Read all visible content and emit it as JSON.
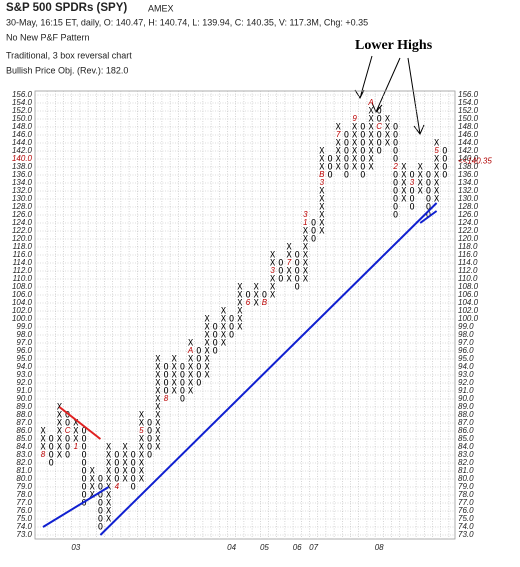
{
  "chart_data": {
    "type": "point_and_figure",
    "title": "S&P 500 SPDRs (SPY)",
    "exchange": "AMEX",
    "info": "30-May, 16:15 ET, daily, O: 140.47, H: 140.74, L: 139.94, C: 140.35, V: 117.3M, Chg: +0.35",
    "pattern": "No New P&F Pattern",
    "method": "Traditional, 3 box reversal chart",
    "objective": "Bullish Price Obj. (Rev.): 182.0",
    "annotation": "Lower Highs",
    "grid": true,
    "highlight_tick": 140,
    "highlight_color": "#b00000",
    "last_price": {
      "value": 140.35,
      "label": "<<140.35"
    },
    "ylim": [
      73,
      156
    ],
    "yticks": [
      {
        "value": 156,
        "label": "156.0"
      },
      {
        "value": 154,
        "label": "154.0"
      },
      {
        "value": 152,
        "label": "152.0"
      },
      {
        "value": 150,
        "label": "150.0"
      },
      {
        "value": 148,
        "label": "148.0"
      },
      {
        "value": 146,
        "label": "146.0"
      },
      {
        "value": 144,
        "label": "144.0"
      },
      {
        "value": 142,
        "label": "142.0"
      },
      {
        "value": 140,
        "label": "140.0"
      },
      {
        "value": 138,
        "label": "138.0"
      },
      {
        "value": 136,
        "label": "136.0"
      },
      {
        "value": 134,
        "label": "134.0"
      },
      {
        "value": 132,
        "label": "132.0"
      },
      {
        "value": 130,
        "label": "130.0"
      },
      {
        "value": 128,
        "label": "128.0"
      },
      {
        "value": 126,
        "label": "126.0"
      },
      {
        "value": 124,
        "label": "124.0"
      },
      {
        "value": 122,
        "label": "122.0"
      },
      {
        "value": 120,
        "label": "120.0"
      },
      {
        "value": 118,
        "label": "118.0"
      },
      {
        "value": 116,
        "label": "116.0"
      },
      {
        "value": 114,
        "label": "114.0"
      },
      {
        "value": 112,
        "label": "112.0"
      },
      {
        "value": 110,
        "label": "110.0"
      },
      {
        "value": 108,
        "label": "108.0"
      },
      {
        "value": 106,
        "label": "106.0"
      },
      {
        "value": 104,
        "label": "104.0"
      },
      {
        "value": 102,
        "label": "102.0"
      },
      {
        "value": 100,
        "label": "100.0"
      },
      {
        "value": 99,
        "label": "99.0"
      },
      {
        "value": 98,
        "label": "98.0"
      },
      {
        "value": 97,
        "label": "97.0"
      },
      {
        "value": 96,
        "label": "96.0"
      },
      {
        "value": 95,
        "label": "95.0"
      },
      {
        "value": 94,
        "label": "94.0"
      },
      {
        "value": 93,
        "label": "93.0"
      },
      {
        "value": 92,
        "label": "92.0"
      },
      {
        "value": 91,
        "label": "91.0"
      },
      {
        "value": 90,
        "label": "90.0"
      },
      {
        "value": 89,
        "label": "89.0"
      },
      {
        "value": 88,
        "label": "88.0"
      },
      {
        "value": 87,
        "label": "87.0"
      },
      {
        "value": 86,
        "label": "86.0"
      },
      {
        "value": 85,
        "label": "85.0"
      },
      {
        "value": 84,
        "label": "84.0"
      },
      {
        "value": 83,
        "label": "83.0"
      },
      {
        "value": 82,
        "label": "82.0"
      },
      {
        "value": 81,
        "label": "81.0"
      },
      {
        "value": 80,
        "label": "80.0"
      },
      {
        "value": 79,
        "label": "79.0"
      },
      {
        "value": 78,
        "label": "78.0"
      },
      {
        "value": 77,
        "label": "77.0"
      },
      {
        "value": 76,
        "label": "76.0"
      },
      {
        "value": 75,
        "label": "75.0"
      },
      {
        "value": 74,
        "label": "74.0"
      },
      {
        "value": 73,
        "label": "73.0"
      }
    ],
    "columns": [
      {
        "type": "X",
        "low": 83,
        "high": 86
      },
      {
        "type": "O",
        "low": 82,
        "high": 85
      },
      {
        "type": "X",
        "low": 83,
        "high": 89
      },
      {
        "type": "O",
        "low": 83,
        "high": 88
      },
      {
        "type": "X",
        "low": 84,
        "high": 87
      },
      {
        "type": "O",
        "low": 77,
        "high": 86
      },
      {
        "type": "X",
        "low": 78,
        "high": 81
      },
      {
        "type": "O",
        "low": 74,
        "high": 80
      },
      {
        "type": "X",
        "low": 75,
        "high": 84
      },
      {
        "type": "O",
        "low": 79,
        "high": 83
      },
      {
        "type": "X",
        "low": 80,
        "high": 84
      },
      {
        "type": "O",
        "low": 79,
        "high": 83
      },
      {
        "type": "X",
        "low": 80,
        "high": 88
      },
      {
        "type": "O",
        "low": 83,
        "high": 87
      },
      {
        "type": "X",
        "low": 84,
        "high": 95
      },
      {
        "type": "O",
        "low": 90,
        "high": 94
      },
      {
        "type": "X",
        "low": 91,
        "high": 95
      },
      {
        "type": "O",
        "low": 90,
        "high": 94
      },
      {
        "type": "X",
        "low": 91,
        "high": 97
      },
      {
        "type": "O",
        "low": 92,
        "high": 96
      },
      {
        "type": "X",
        "low": 93,
        "high": 100
      },
      {
        "type": "O",
        "low": 96,
        "high": 99
      },
      {
        "type": "X",
        "low": 97,
        "high": 102
      },
      {
        "type": "O",
        "low": 98,
        "high": 100
      },
      {
        "type": "X",
        "low": 99,
        "high": 108
      },
      {
        "type": "O",
        "low": 104,
        "high": 106
      },
      {
        "type": "X",
        "low": 104,
        "high": 108
      },
      {
        "type": "O",
        "low": 104,
        "high": 106
      },
      {
        "type": "X",
        "low": 106,
        "high": 116
      },
      {
        "type": "O",
        "low": 110,
        "high": 114
      },
      {
        "type": "X",
        "low": 110,
        "high": 118
      },
      {
        "type": "O",
        "low": 108,
        "high": 116
      },
      {
        "type": "X",
        "low": 110,
        "high": 126
      },
      {
        "type": "O",
        "low": 120,
        "high": 124
      },
      {
        "type": "X",
        "low": 122,
        "high": 142
      },
      {
        "type": "O",
        "low": 136,
        "high": 140
      },
      {
        "type": "X",
        "low": 138,
        "high": 148
      },
      {
        "type": "O",
        "low": 136,
        "high": 146
      },
      {
        "type": "X",
        "low": 138,
        "high": 150
      },
      {
        "type": "O",
        "low": 136,
        "high": 148
      },
      {
        "type": "X",
        "low": 138,
        "high": 154
      },
      {
        "type": "O",
        "low": 142,
        "high": 152
      },
      {
        "type": "X",
        "low": 144,
        "high": 150
      },
      {
        "type": "O",
        "low": 126,
        "high": 148
      },
      {
        "type": "X",
        "low": 130,
        "high": 138
      },
      {
        "type": "O",
        "low": 128,
        "high": 136
      },
      {
        "type": "X",
        "low": 132,
        "high": 138
      },
      {
        "type": "O",
        "low": 126,
        "high": 136
      },
      {
        "type": "X",
        "low": 130,
        "high": 144
      },
      {
        "type": "O",
        "low": 136,
        "high": 142
      }
    ],
    "markers": [
      {
        "column": 0,
        "value": 83,
        "label": "8"
      },
      {
        "column": 3,
        "value": 86,
        "label": "C"
      },
      {
        "column": 4,
        "value": 84,
        "label": "1"
      },
      {
        "column": 9,
        "value": 79,
        "label": "4"
      },
      {
        "column": 12,
        "value": 86,
        "label": "5"
      },
      {
        "column": 15,
        "value": 90,
        "label": "8"
      },
      {
        "column": 18,
        "value": 96,
        "label": "A"
      },
      {
        "column": 19,
        "value": 97,
        "label": "C"
      },
      {
        "column": 22,
        "value": 101,
        "label": "B"
      },
      {
        "column": 24,
        "value": 105,
        "label": "1"
      },
      {
        "column": 25,
        "value": 104,
        "label": "6"
      },
      {
        "column": 27,
        "value": 104,
        "label": "B"
      },
      {
        "column": 28,
        "value": 112,
        "label": "3"
      },
      {
        "column": 30,
        "value": 114,
        "label": "7"
      },
      {
        "column": 32,
        "value": 124,
        "label": "1"
      },
      {
        "column": 32,
        "value": 126,
        "label": "3"
      },
      {
        "column": 34,
        "value": 134,
        "label": "3"
      },
      {
        "column": 34,
        "value": 136,
        "label": "B"
      },
      {
        "column": 36,
        "value": 146,
        "label": "7"
      },
      {
        "column": 38,
        "value": 150,
        "label": "9"
      },
      {
        "column": 40,
        "value": 154,
        "label": "A"
      },
      {
        "column": 41,
        "value": 148,
        "label": "C"
      },
      {
        "column": 43,
        "value": 138,
        "label": "2"
      },
      {
        "column": 45,
        "value": 134,
        "label": "3"
      },
      {
        "column": 48,
        "value": 142,
        "label": "5"
      }
    ],
    "year_labels": [
      {
        "column": 4,
        "label": "03"
      },
      {
        "column": 23,
        "label": "04"
      },
      {
        "column": 27,
        "label": "05"
      },
      {
        "column": 31,
        "label": "06"
      },
      {
        "column": 33,
        "label": "07"
      },
      {
        "column": 41,
        "label": "08"
      }
    ],
    "trend_lines": [
      {
        "from": [
          2,
          89
        ],
        "to": [
          7,
          85
        ],
        "color": "#e02020"
      },
      {
        "from": [
          0,
          74
        ],
        "to": [
          8,
          79
        ],
        "color": "#1020d0"
      },
      {
        "from": [
          7,
          73
        ],
        "to": [
          48,
          129
        ],
        "color": "#1020d0"
      },
      {
        "from": [
          46,
          124
        ],
        "to": [
          48,
          127
        ],
        "color": "#1020d0"
      }
    ]
  }
}
